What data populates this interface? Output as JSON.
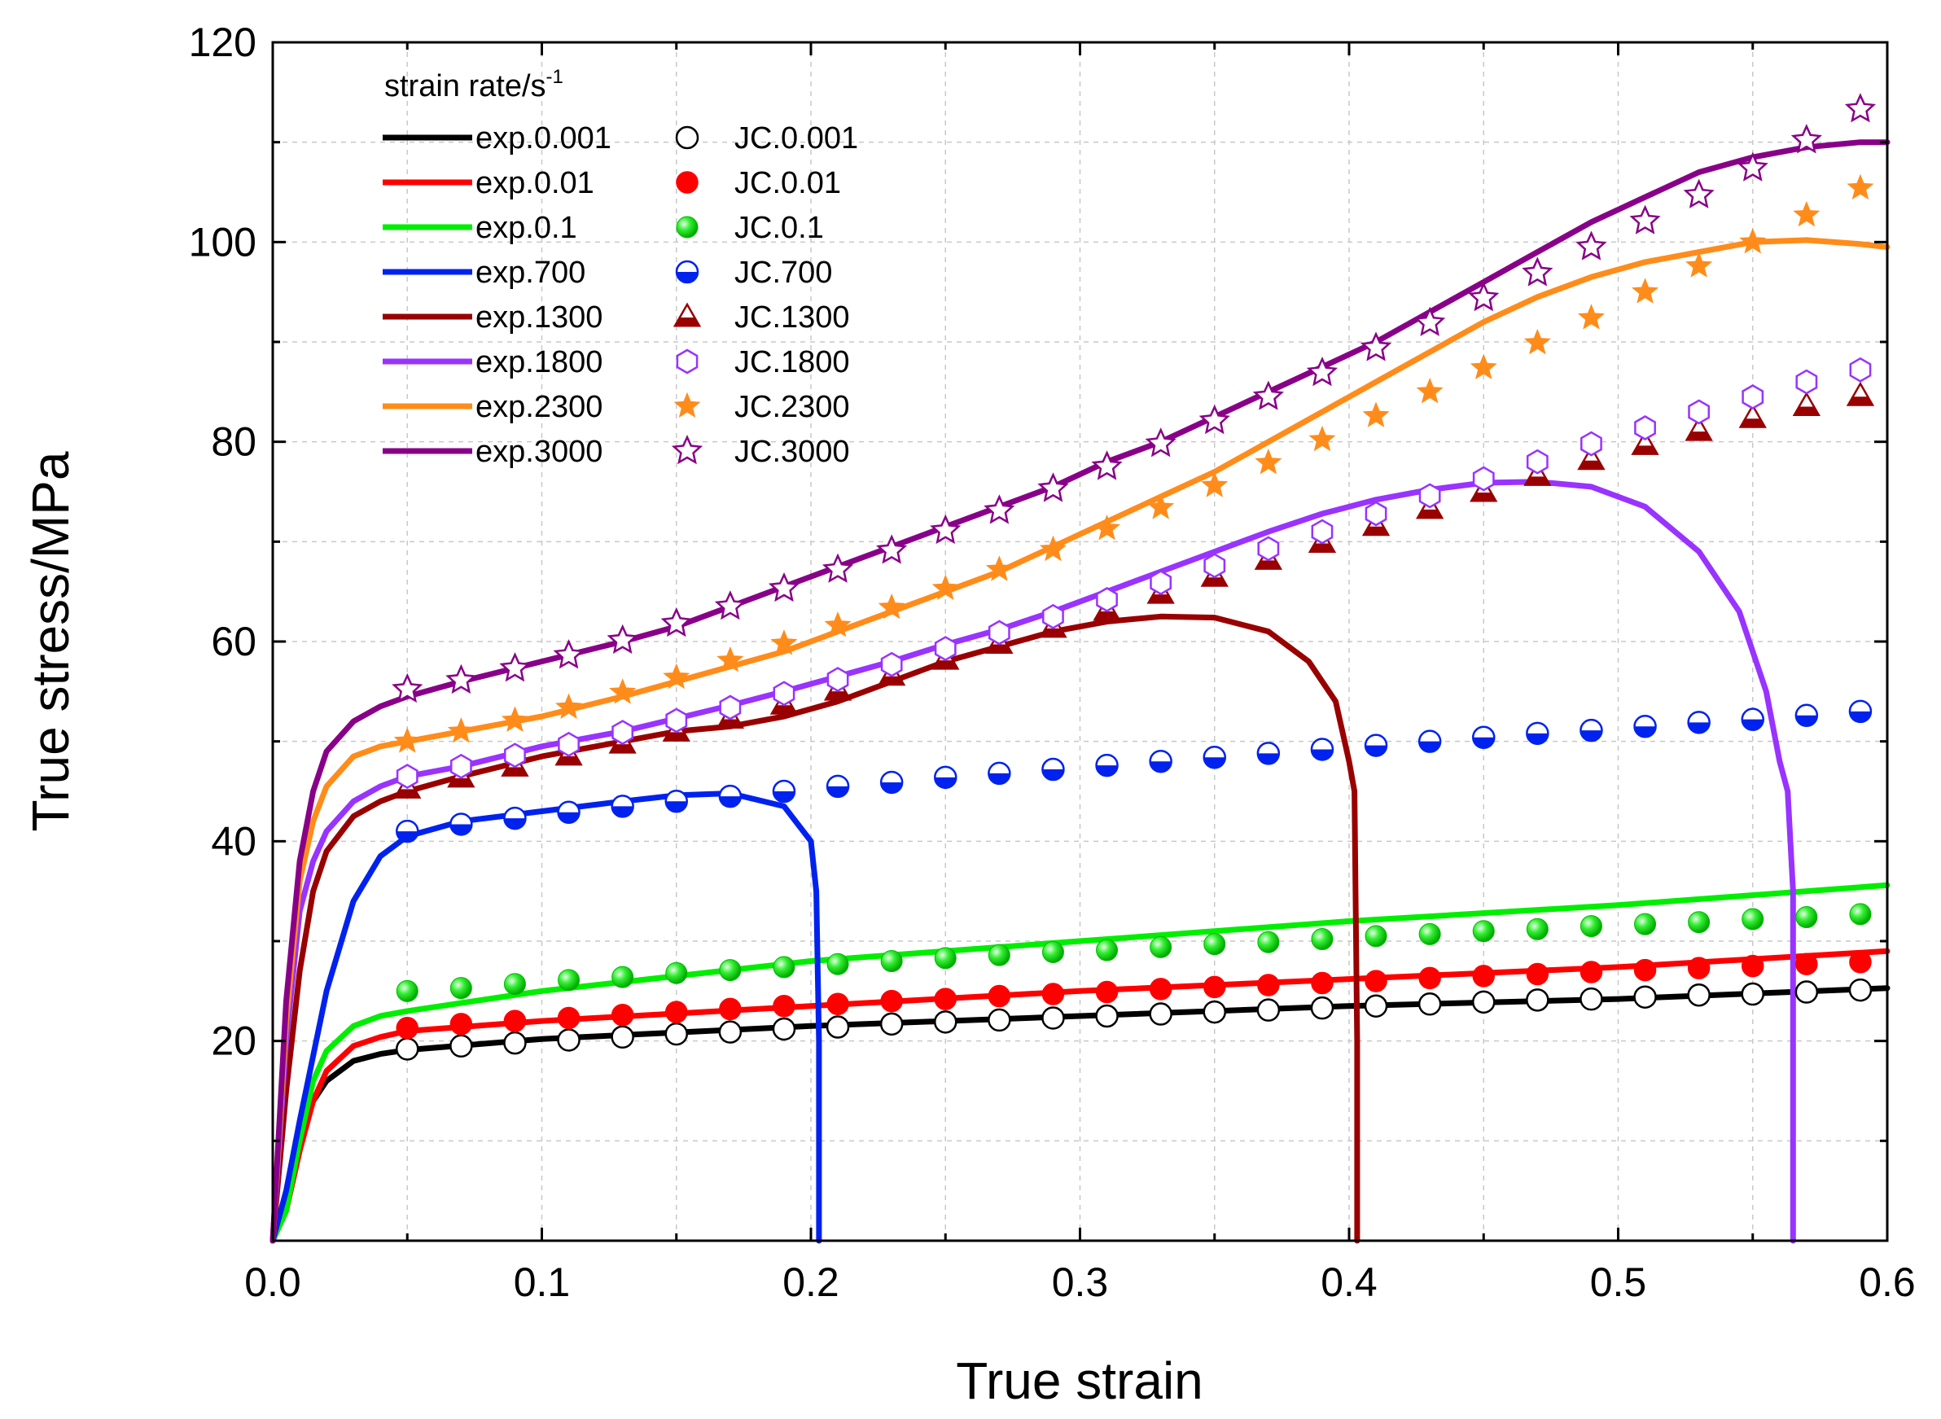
{
  "chart_data": {
    "type": "line",
    "title": "",
    "xlabel": "True strain",
    "ylabel": "True stress/MPa",
    "xlim": [
      0.0,
      0.6
    ],
    "ylim": [
      0,
      120
    ],
    "xticks": [
      0.0,
      0.1,
      0.2,
      0.3,
      0.4,
      0.5,
      0.6
    ],
    "xtick_labels": [
      "0.0",
      "0.1",
      "0.2",
      "0.3",
      "0.4",
      "0.5",
      "0.6"
    ],
    "yticks": [
      20,
      40,
      60,
      80,
      100,
      120
    ],
    "ytick_labels": [
      "20",
      "40",
      "60",
      "80",
      "100",
      "120"
    ],
    "grid": true,
    "legend_title": "strain rate/s",
    "legend_title_sup": "-1",
    "legend_position": "top-left",
    "experimental_series": [
      {
        "name": "exp.0.001",
        "color": "#000000",
        "x": [
          0,
          0.005,
          0.01,
          0.015,
          0.02,
          0.03,
          0.04,
          0.05,
          0.1,
          0.2,
          0.3,
          0.4,
          0.5,
          0.6
        ],
        "y": [
          0,
          4,
          10,
          14,
          16,
          18,
          18.7,
          19.1,
          20.2,
          21.5,
          22.5,
          23.5,
          24.2,
          25.3
        ]
      },
      {
        "name": "exp.0.01",
        "color": "#ff0000",
        "x": [
          0,
          0.005,
          0.01,
          0.015,
          0.02,
          0.03,
          0.04,
          0.05,
          0.1,
          0.2,
          0.3,
          0.4,
          0.5,
          0.6
        ],
        "y": [
          0,
          3,
          9,
          14,
          17,
          19.5,
          20.4,
          21,
          22,
          23.5,
          25,
          26.2,
          27.4,
          29
        ]
      },
      {
        "name": "exp.0.1",
        "color": "#00ee00",
        "x": [
          0,
          0.005,
          0.01,
          0.015,
          0.02,
          0.03,
          0.04,
          0.05,
          0.1,
          0.2,
          0.3,
          0.4,
          0.5,
          0.6
        ],
        "y": [
          0,
          3,
          10,
          16,
          19,
          21.5,
          22.5,
          23,
          25,
          28,
          30,
          32,
          33.6,
          35.6
        ]
      },
      {
        "name": "exp.700",
        "color": "#0022ee",
        "x": [
          0,
          0.005,
          0.01,
          0.02,
          0.03,
          0.04,
          0.05,
          0.07,
          0.1,
          0.13,
          0.15,
          0.17,
          0.19,
          0.2,
          0.202,
          0.203,
          0.203
        ],
        "y": [
          0,
          5,
          12,
          25,
          34,
          38.5,
          40.5,
          42,
          43,
          44,
          44.6,
          44.8,
          43.5,
          40,
          35,
          20,
          0
        ]
      },
      {
        "name": "exp.1300",
        "color": "#990000",
        "x": [
          0,
          0.005,
          0.01,
          0.015,
          0.02,
          0.03,
          0.04,
          0.05,
          0.07,
          0.1,
          0.13,
          0.15,
          0.17,
          0.19,
          0.21,
          0.23,
          0.25,
          0.27,
          0.29,
          0.31,
          0.33,
          0.35,
          0.37,
          0.385,
          0.395,
          0.4,
          0.402,
          0.403,
          0.403
        ],
        "y": [
          0,
          15,
          27,
          35,
          39,
          42.5,
          44,
          45,
          46.5,
          48.5,
          50,
          51,
          51.5,
          52.5,
          54,
          56,
          58,
          59.5,
          61,
          62,
          62.5,
          62.4,
          61,
          58,
          54,
          48,
          45,
          20,
          0
        ]
      },
      {
        "name": "exp.1800",
        "color": "#9933ff",
        "x": [
          0,
          0.005,
          0.01,
          0.015,
          0.02,
          0.03,
          0.04,
          0.05,
          0.07,
          0.1,
          0.13,
          0.15,
          0.17,
          0.19,
          0.21,
          0.23,
          0.25,
          0.27,
          0.29,
          0.31,
          0.33,
          0.35,
          0.37,
          0.39,
          0.41,
          0.43,
          0.45,
          0.47,
          0.49,
          0.51,
          0.53,
          0.545,
          0.555,
          0.56,
          0.563,
          0.565,
          0.565
        ],
        "y": [
          0,
          20,
          33,
          38,
          41,
          44,
          45.5,
          46.5,
          47.5,
          49.5,
          51,
          52.3,
          53.6,
          55,
          56.5,
          58,
          59.7,
          61.2,
          63,
          65,
          67,
          69,
          71,
          72.8,
          74.2,
          75.2,
          75.9,
          76,
          75.5,
          73.5,
          69,
          63,
          55,
          48,
          45,
          35,
          0
        ]
      },
      {
        "name": "exp.2300",
        "color": "#ff8c1a",
        "x": [
          0,
          0.005,
          0.01,
          0.015,
          0.02,
          0.03,
          0.04,
          0.05,
          0.07,
          0.1,
          0.13,
          0.15,
          0.17,
          0.19,
          0.21,
          0.23,
          0.25,
          0.27,
          0.29,
          0.31,
          0.33,
          0.35,
          0.37,
          0.39,
          0.41,
          0.43,
          0.45,
          0.47,
          0.49,
          0.51,
          0.53,
          0.55,
          0.57,
          0.59,
          0.6
        ],
        "y": [
          0,
          22,
          36,
          42,
          45.5,
          48.5,
          49.5,
          50,
          51,
          52.5,
          54.5,
          56,
          57.5,
          59,
          61,
          63,
          65,
          67,
          69.5,
          72,
          74.5,
          77,
          80,
          83,
          86,
          89,
          92,
          94.5,
          96.5,
          98,
          99,
          100,
          100.2,
          99.8,
          99.5
        ]
      },
      {
        "name": "exp.3000",
        "color": "#880088",
        "x": [
          0,
          0.005,
          0.01,
          0.015,
          0.02,
          0.03,
          0.04,
          0.05,
          0.07,
          0.1,
          0.13,
          0.15,
          0.17,
          0.19,
          0.21,
          0.23,
          0.25,
          0.27,
          0.29,
          0.31,
          0.33,
          0.35,
          0.37,
          0.39,
          0.41,
          0.43,
          0.45,
          0.47,
          0.49,
          0.51,
          0.53,
          0.55,
          0.57,
          0.59,
          0.6
        ],
        "y": [
          0,
          24,
          38,
          45,
          49,
          52,
          53.5,
          54.5,
          56,
          58,
          60,
          61.5,
          63.5,
          65.5,
          67.5,
          69.5,
          71.5,
          73.5,
          75.5,
          78,
          80,
          82.5,
          85,
          87.5,
          90,
          93,
          96,
          99,
          102,
          104.5,
          107,
          108.5,
          109.5,
          110,
          110
        ]
      }
    ],
    "model_series": [
      {
        "name": "JC.0.001",
        "marker": "circle-open",
        "color": "#000000",
        "x": [
          0.05,
          0.07,
          0.09,
          0.11,
          0.13,
          0.15,
          0.17,
          0.19,
          0.21,
          0.23,
          0.25,
          0.27,
          0.29,
          0.31,
          0.33,
          0.35,
          0.37,
          0.39,
          0.41,
          0.43,
          0.45,
          0.47,
          0.49,
          0.51,
          0.53,
          0.55,
          0.57,
          0.59
        ],
        "y": [
          19.2,
          19.5,
          19.8,
          20.1,
          20.4,
          20.7,
          20.9,
          21.2,
          21.4,
          21.7,
          21.9,
          22.1,
          22.3,
          22.5,
          22.7,
          22.9,
          23.1,
          23.3,
          23.5,
          23.7,
          23.9,
          24.1,
          24.2,
          24.4,
          24.6,
          24.7,
          24.9,
          25.1
        ]
      },
      {
        "name": "JC.0.01",
        "marker": "circle-filled",
        "color": "#ff0000",
        "x": [
          0.05,
          0.07,
          0.09,
          0.11,
          0.13,
          0.15,
          0.17,
          0.19,
          0.21,
          0.23,
          0.25,
          0.27,
          0.29,
          0.31,
          0.33,
          0.35,
          0.37,
          0.39,
          0.41,
          0.43,
          0.45,
          0.47,
          0.49,
          0.51,
          0.53,
          0.55,
          0.57,
          0.59
        ],
        "y": [
          21.3,
          21.7,
          22.0,
          22.3,
          22.6,
          22.9,
          23.2,
          23.5,
          23.7,
          24.0,
          24.2,
          24.5,
          24.7,
          24.9,
          25.2,
          25.4,
          25.6,
          25.8,
          26.0,
          26.3,
          26.5,
          26.7,
          26.9,
          27.1,
          27.3,
          27.5,
          27.7,
          27.9
        ]
      },
      {
        "name": "JC.0.1",
        "marker": "sphere",
        "color": "#00dd00",
        "x": [
          0.05,
          0.07,
          0.09,
          0.11,
          0.13,
          0.15,
          0.17,
          0.19,
          0.21,
          0.23,
          0.25,
          0.27,
          0.29,
          0.31,
          0.33,
          0.35,
          0.37,
          0.39,
          0.41,
          0.43,
          0.45,
          0.47,
          0.49,
          0.51,
          0.53,
          0.55,
          0.57,
          0.59
        ],
        "y": [
          25.0,
          25.3,
          25.7,
          26.1,
          26.4,
          26.8,
          27.1,
          27.4,
          27.7,
          28.0,
          28.3,
          28.6,
          28.9,
          29.1,
          29.4,
          29.7,
          29.9,
          30.2,
          30.5,
          30.7,
          31.0,
          31.2,
          31.5,
          31.7,
          31.9,
          32.2,
          32.4,
          32.7
        ]
      },
      {
        "name": "JC.700",
        "marker": "circle-half",
        "color": "#0022ee",
        "x": [
          0.05,
          0.07,
          0.09,
          0.11,
          0.13,
          0.15,
          0.17,
          0.19,
          0.21,
          0.23,
          0.25,
          0.27,
          0.29,
          0.31,
          0.33,
          0.35,
          0.37,
          0.39,
          0.41,
          0.43,
          0.45,
          0.47,
          0.49,
          0.51,
          0.53,
          0.55,
          0.57,
          0.59
        ],
        "y": [
          41.0,
          41.7,
          42.3,
          42.9,
          43.5,
          44.0,
          44.5,
          45.0,
          45.5,
          45.9,
          46.4,
          46.8,
          47.2,
          47.6,
          48.0,
          48.4,
          48.8,
          49.2,
          49.6,
          50.0,
          50.4,
          50.8,
          51.1,
          51.5,
          51.9,
          52.2,
          52.6,
          53.0
        ]
      },
      {
        "name": "JC.1300",
        "marker": "triangle-half",
        "color": "#990000",
        "x": [
          0.05,
          0.07,
          0.09,
          0.11,
          0.13,
          0.15,
          0.17,
          0.19,
          0.21,
          0.23,
          0.25,
          0.27,
          0.29,
          0.31,
          0.33,
          0.35,
          0.37,
          0.39,
          0.41,
          0.43,
          0.45,
          0.47,
          0.49,
          0.51,
          0.53,
          0.55,
          0.57,
          0.59
        ],
        "y": [
          45.3,
          46.4,
          47.5,
          48.6,
          49.8,
          51.0,
          52.3,
          53.7,
          55.1,
          56.6,
          58.2,
          59.8,
          61.4,
          63.1,
          64.8,
          66.5,
          68.2,
          69.9,
          71.6,
          73.3,
          75.0,
          76.6,
          78.2,
          79.7,
          81.1,
          82.4,
          83.6,
          84.6
        ]
      },
      {
        "name": "JC.1800",
        "marker": "hexagon-open",
        "color": "#9933ff",
        "x": [
          0.05,
          0.07,
          0.09,
          0.11,
          0.13,
          0.15,
          0.17,
          0.19,
          0.21,
          0.23,
          0.25,
          0.27,
          0.29,
          0.31,
          0.33,
          0.35,
          0.37,
          0.39,
          0.41,
          0.43,
          0.45,
          0.47,
          0.49,
          0.51,
          0.53,
          0.55,
          0.57,
          0.59
        ],
        "y": [
          46.5,
          47.5,
          48.6,
          49.7,
          50.9,
          52.1,
          53.4,
          54.8,
          56.2,
          57.7,
          59.3,
          60.9,
          62.5,
          64.2,
          65.9,
          67.6,
          69.3,
          71.0,
          72.8,
          74.6,
          76.3,
          78.0,
          79.8,
          81.4,
          83.0,
          84.5,
          86.0,
          87.2
        ]
      },
      {
        "name": "JC.2300",
        "marker": "star-filled",
        "color": "#ff8c1a",
        "x": [
          0.05,
          0.07,
          0.09,
          0.11,
          0.13,
          0.15,
          0.17,
          0.19,
          0.21,
          0.23,
          0.25,
          0.27,
          0.29,
          0.31,
          0.33,
          0.35,
          0.37,
          0.39,
          0.41,
          0.43,
          0.45,
          0.47,
          0.49,
          0.51,
          0.53,
          0.55,
          0.57,
          0.59
        ],
        "y": [
          50.0,
          51.0,
          52.1,
          53.4,
          54.9,
          56.4,
          58.1,
          59.8,
          61.6,
          63.4,
          65.3,
          67.2,
          69.2,
          71.3,
          73.4,
          75.6,
          77.9,
          80.2,
          82.6,
          85.0,
          87.4,
          89.9,
          92.4,
          95.0,
          97.6,
          100.0,
          102.7,
          105.4
        ]
      },
      {
        "name": "JC.3000",
        "marker": "star-open",
        "color": "#880088",
        "x": [
          0.05,
          0.07,
          0.09,
          0.11,
          0.13,
          0.15,
          0.17,
          0.19,
          0.21,
          0.23,
          0.25,
          0.27,
          0.29,
          0.31,
          0.33,
          0.35,
          0.37,
          0.39,
          0.41,
          0.43,
          0.45,
          0.47,
          0.49,
          0.51,
          0.53,
          0.55,
          0.57,
          0.59
        ],
        "y": [
          55.2,
          56.1,
          57.3,
          58.6,
          60.1,
          61.8,
          63.5,
          65.3,
          67.2,
          69.1,
          71.1,
          73.1,
          75.3,
          77.5,
          79.8,
          82.1,
          84.5,
          86.9,
          89.4,
          91.9,
          94.4,
          96.9,
          99.5,
          102.1,
          104.7,
          107.4,
          110.2,
          113.3
        ]
      }
    ]
  }
}
